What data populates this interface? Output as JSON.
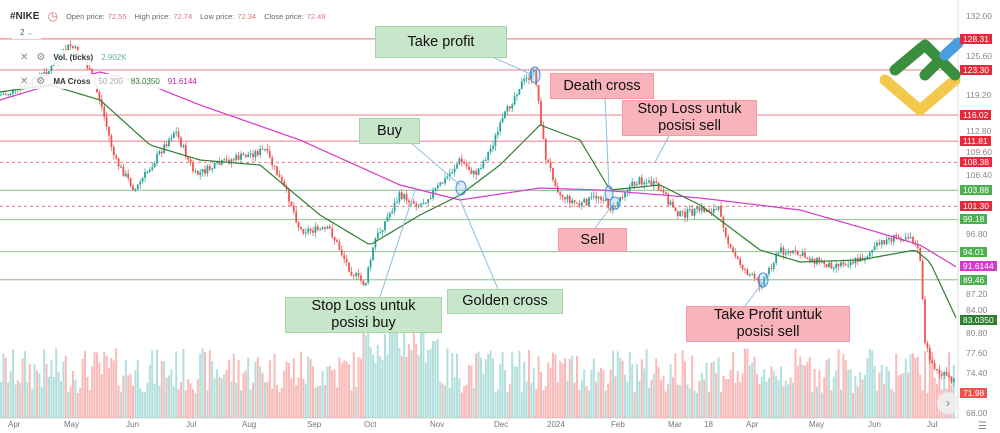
{
  "header": {
    "symbol": "#NIKE",
    "open_label": "Open price:",
    "open": "72.55",
    "high_label": "High price:",
    "high": "72.74",
    "low_label": "Low price:",
    "low": "72.34",
    "close_label": "Close price:",
    "close": "72.49",
    "interval": "2"
  },
  "indicators": {
    "volume": {
      "name": "Vol. (ticks)",
      "value": "2.902K"
    },
    "ma_cross": {
      "name": "MA Cross",
      "params": "50 200",
      "fast": "83.0350",
      "slow": "91.6144"
    }
  },
  "annotations": {
    "take_profit": "Take profit",
    "death_cross": "Death cross",
    "stop_loss_sell": [
      "Stop Loss untuk",
      "posisi sell"
    ],
    "buy": "Buy",
    "sell": "Sell",
    "stop_loss_buy": [
      "Stop Loss untuk",
      "posisi buy"
    ],
    "golden_cross": "Golden cross",
    "take_profit_sell": [
      "Take Profit untuk",
      "posisi sell"
    ]
  },
  "colors": {
    "up": "#26a69a",
    "down": "#ef5350",
    "ma_fast": "#2e7d32",
    "ma_slow": "#d63ac8",
    "level_red": "#e8283c",
    "level_green": "#4caf50"
  },
  "price_axis": {
    "ticks": [
      "132.00",
      "125.60",
      "119.20",
      "112.80",
      "109.60",
      "106.40",
      "96.80",
      "87.20",
      "84.00",
      "80.80",
      "77.60",
      "74.40",
      "68.00"
    ],
    "levels": [
      {
        "value": "128.31",
        "color": "red",
        "style": "solid"
      },
      {
        "value": "123.30",
        "color": "red",
        "style": "solid"
      },
      {
        "value": "116.02",
        "color": "red",
        "style": "solid"
      },
      {
        "value": "111.81",
        "color": "red",
        "style": "solid"
      },
      {
        "value": "108.38",
        "color": "red",
        "style": "dashed"
      },
      {
        "value": "103.88",
        "color": "green",
        "style": "solid"
      },
      {
        "value": "101.30",
        "color": "red",
        "style": "dashed"
      },
      {
        "value": "99.18",
        "color": "green",
        "style": "solid"
      },
      {
        "value": "94.01",
        "color": "green",
        "style": "solid"
      },
      {
        "value": "89.46",
        "color": "green",
        "style": "solid"
      }
    ],
    "ma_slow_badge": "91.6144",
    "ma_fast_badge": "83.0350",
    "last_price": "71.98"
  },
  "time_axis": [
    "Apr",
    "May",
    "Jun",
    "Jul",
    "Aug",
    "Sep",
    "Oct",
    "Nov",
    "Dec",
    "2024",
    "Feb",
    "Mar",
    "18",
    "Apr",
    "May",
    "Jun",
    "Jul"
  ]
}
